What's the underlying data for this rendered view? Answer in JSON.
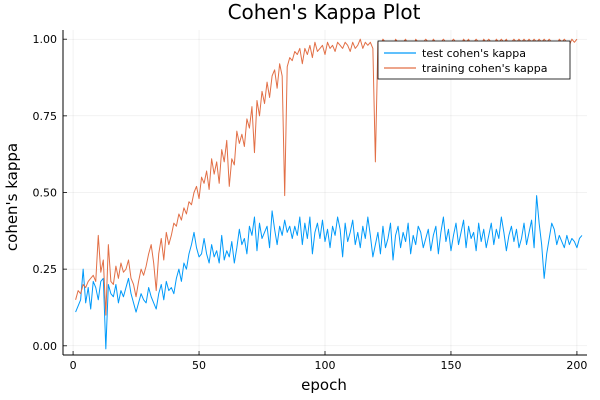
{
  "chart_data": {
    "type": "line",
    "title": "Cohen's Kappa Plot",
    "xlabel": "epoch",
    "ylabel": "cohen's kappa",
    "xlim": [
      -4,
      204
    ],
    "ylim": [
      -0.03,
      1.03
    ],
    "xticks": [
      0,
      50,
      100,
      150,
      200
    ],
    "xtick_labels": [
      "0",
      "50",
      "100",
      "150",
      "200"
    ],
    "yticks": [
      0,
      0.25,
      0.5,
      0.75,
      1.0
    ],
    "ytick_labels": [
      "0.00",
      "0.25",
      "0.50",
      "0.75",
      "1.00"
    ],
    "grid": true,
    "legend_position": "top-right",
    "x_start": 1,
    "x_step": 1,
    "series": [
      {
        "name": "test cohen's kappa",
        "color": "#009AFA",
        "values": [
          0.11,
          0.13,
          0.15,
          0.25,
          0.14,
          0.19,
          0.12,
          0.21,
          0.19,
          0.15,
          0.21,
          0.22,
          -0.01,
          0.2,
          0.17,
          0.16,
          0.2,
          0.14,
          0.18,
          0.16,
          0.19,
          0.22,
          0.17,
          0.14,
          0.11,
          0.14,
          0.17,
          0.15,
          0.14,
          0.19,
          0.16,
          0.14,
          0.12,
          0.17,
          0.2,
          0.15,
          0.21,
          0.18,
          0.19,
          0.17,
          0.22,
          0.25,
          0.21,
          0.27,
          0.25,
          0.3,
          0.33,
          0.37,
          0.32,
          0.29,
          0.3,
          0.35,
          0.3,
          0.27,
          0.33,
          0.29,
          0.31,
          0.27,
          0.36,
          0.28,
          0.31,
          0.29,
          0.34,
          0.27,
          0.32,
          0.38,
          0.33,
          0.35,
          0.3,
          0.39,
          0.36,
          0.42,
          0.31,
          0.4,
          0.35,
          0.37,
          0.39,
          0.32,
          0.44,
          0.38,
          0.33,
          0.39,
          0.36,
          0.41,
          0.37,
          0.39,
          0.35,
          0.39,
          0.36,
          0.42,
          0.33,
          0.4,
          0.35,
          0.42,
          0.3,
          0.37,
          0.4,
          0.35,
          0.41,
          0.34,
          0.38,
          0.32,
          0.39,
          0.36,
          0.42,
          0.38,
          0.29,
          0.4,
          0.34,
          0.37,
          0.41,
          0.33,
          0.37,
          0.32,
          0.39,
          0.35,
          0.42,
          0.36,
          0.29,
          0.33,
          0.37,
          0.3,
          0.39,
          0.32,
          0.35,
          0.4,
          0.28,
          0.36,
          0.39,
          0.32,
          0.37,
          0.34,
          0.4,
          0.3,
          0.36,
          0.33,
          0.39,
          0.37,
          0.32,
          0.35,
          0.38,
          0.31,
          0.36,
          0.39,
          0.3,
          0.37,
          0.42,
          0.34,
          0.38,
          0.31,
          0.36,
          0.4,
          0.33,
          0.37,
          0.41,
          0.32,
          0.39,
          0.35,
          0.37,
          0.31,
          0.4,
          0.34,
          0.38,
          0.32,
          0.36,
          0.4,
          0.33,
          0.38,
          0.35,
          0.42,
          0.37,
          0.31,
          0.36,
          0.39,
          0.34,
          0.38,
          0.32,
          0.35,
          0.4,
          0.33,
          0.37,
          0.41,
          0.32,
          0.49,
          0.4,
          0.33,
          0.22,
          0.3,
          0.35,
          0.4,
          0.38,
          0.33,
          0.36,
          0.34,
          0.32,
          0.36,
          0.33,
          0.35,
          0.34,
          0.32,
          0.35,
          0.36
        ]
      },
      {
        "name": "training cohen's kappa",
        "color": "#E26F46",
        "values": [
          0.15,
          0.18,
          0.17,
          0.2,
          0.19,
          0.21,
          0.22,
          0.23,
          0.21,
          0.36,
          0.24,
          0.28,
          0.1,
          0.33,
          0.21,
          0.2,
          0.26,
          0.22,
          0.27,
          0.24,
          0.25,
          0.28,
          0.22,
          0.2,
          0.16,
          0.21,
          0.25,
          0.23,
          0.26,
          0.3,
          0.33,
          0.27,
          0.18,
          0.3,
          0.35,
          0.28,
          0.37,
          0.33,
          0.36,
          0.4,
          0.39,
          0.43,
          0.41,
          0.45,
          0.43,
          0.47,
          0.46,
          0.5,
          0.52,
          0.48,
          0.55,
          0.53,
          0.57,
          0.51,
          0.61,
          0.56,
          0.6,
          0.53,
          0.64,
          0.6,
          0.67,
          0.52,
          0.61,
          0.59,
          0.7,
          0.66,
          0.69,
          0.65,
          0.74,
          0.71,
          0.78,
          0.63,
          0.8,
          0.75,
          0.83,
          0.79,
          0.86,
          0.81,
          0.88,
          0.9,
          0.84,
          0.92,
          0.88,
          0.49,
          0.91,
          0.94,
          0.93,
          0.96,
          0.95,
          0.97,
          0.92,
          0.97,
          0.95,
          0.98,
          0.94,
          0.99,
          0.96,
          0.97,
          0.98,
          0.95,
          0.99,
          0.97,
          0.98,
          0.96,
          0.99,
          0.98,
          0.97,
          0.99,
          0.98,
          0.96,
          0.99,
          0.97,
          0.98,
          1.0,
          0.97,
          0.99,
          0.98,
          0.99,
          0.97,
          0.6,
          0.99,
          0.98,
          1.0,
          0.99,
          0.98,
          0.99,
          0.97,
          1.0,
          0.99,
          0.98,
          0.99,
          1.0,
          0.98,
          0.99,
          0.97,
          1.0,
          0.99,
          0.98,
          0.99,
          1.0,
          0.99,
          0.98,
          1.0,
          0.99,
          0.98,
          0.99,
          1.0,
          0.99,
          0.98,
          0.99,
          1.0,
          0.99,
          0.99,
          0.98,
          1.0,
          0.99,
          1.0,
          0.98,
          0.99,
          1.0,
          0.99,
          0.98,
          1.0,
          0.99,
          1.0,
          0.99,
          0.98,
          1.0,
          0.99,
          1.0,
          0.99,
          1.0,
          0.98,
          0.99,
          1.0,
          0.99,
          1.0,
          0.99,
          1.0,
          0.99,
          1.0,
          0.99,
          1.0,
          0.99,
          1.0,
          0.99,
          1.0,
          0.99,
          1.0,
          0.99,
          0.99,
          0.98,
          1.0,
          0.99,
          1.0,
          0.99,
          0.98,
          1.0,
          0.99,
          1.0
        ]
      }
    ]
  }
}
